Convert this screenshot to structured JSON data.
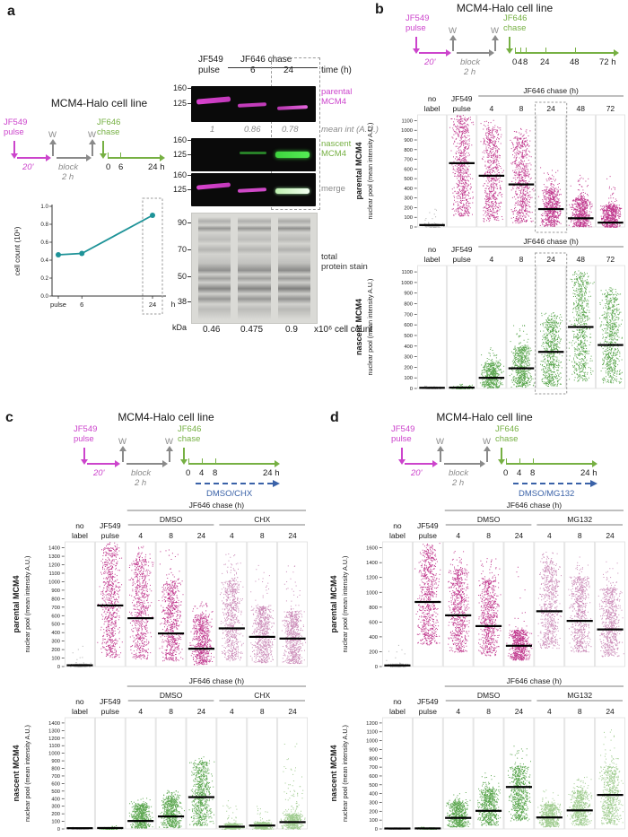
{
  "panels": {
    "a": {
      "letter": "a",
      "title": "MCM4-Halo cell line",
      "schematic": {
        "jf549": [
          "JF549",
          "pulse"
        ],
        "w1": "W",
        "w2": "W",
        "jf646": [
          "JF646",
          "chase"
        ],
        "pulse_dur": "20'",
        "block": [
          "block",
          "2 h"
        ],
        "ticks": [
          "0",
          "6",
          "24 h"
        ]
      },
      "blots": {
        "group_header": "JF646 chase",
        "col1": [
          "JF549",
          "pulse"
        ],
        "col2": "6",
        "col3": "24",
        "time_label": "time (h)",
        "marker_160": "160",
        "marker_125": "125",
        "row1_label": [
          "parental",
          "MCM4"
        ],
        "mean_values": [
          "1",
          "0.86",
          "0.78"
        ],
        "mean_label": "mean int (A.U.)",
        "row2_label": [
          "nascent",
          "MCM4"
        ],
        "row3_label": "merge",
        "stain_markers": [
          "90",
          "70",
          "50",
          "38"
        ],
        "kda": "kDa",
        "stain_label": [
          "total",
          "protein stain"
        ],
        "counts": [
          "0.46",
          "0.475",
          "0.9"
        ],
        "counts_suffix": "x10⁶ cell count"
      }
    },
    "b": {
      "letter": "b",
      "title": "MCM4-Halo cell line",
      "schematic": {
        "jf549": [
          "JF549",
          "pulse"
        ],
        "w1": "W",
        "w2": "W",
        "jf646": [
          "JF646",
          "chase"
        ],
        "pulse_dur": "20'",
        "block": [
          "block",
          "2 h"
        ],
        "ticks": [
          "0",
          "4",
          "8",
          "24",
          "48",
          "72 h"
        ]
      }
    },
    "c": {
      "letter": "c",
      "title": "MCM4-Halo cell line",
      "schematic": {
        "jf549": [
          "JF549",
          "pulse"
        ],
        "w1": "W",
        "w2": "W",
        "jf646": [
          "JF646",
          "chase"
        ],
        "pulse_dur": "20'",
        "block": [
          "block",
          "2 h"
        ],
        "ticks": [
          "0",
          "4",
          "8",
          "24 h"
        ],
        "drug": "DMSO/CHX"
      }
    },
    "d": {
      "letter": "d",
      "title": "MCM4-Halo cell line",
      "schematic": {
        "jf549": [
          "JF549",
          "pulse"
        ],
        "w1": "W",
        "w2": "W",
        "jf646": [
          "JF646",
          "chase"
        ],
        "pulse_dur": "20'",
        "block": [
          "block",
          "2 h"
        ],
        "ticks": [
          "0",
          "4",
          "8",
          "24 h"
        ],
        "drug": "DMSO/MG132"
      }
    }
  },
  "chart_data": [
    {
      "id": "a_cell_count",
      "type": "line",
      "title": "",
      "ylabel": "cell count (10⁶)",
      "categories": [
        "pulse",
        "6",
        "24"
      ],
      "x_hours": [
        0,
        6,
        24
      ],
      "values": [
        0.46,
        0.475,
        0.9
      ],
      "ylim": [
        0,
        1.0
      ],
      "ystep": 0.2,
      "x_suffix": "h",
      "color": "#1e9398",
      "dashed_last": true
    },
    {
      "id": "b_parental",
      "type": "scatter",
      "ylabel_bold": "parental MCM4",
      "ylabel_sub": "nuclear pool (mean intensity A.U.)",
      "ylim": 1100,
      "ystep": 100,
      "ymax_display": 1160,
      "top_header": {
        "label": "JF646 chase (h)",
        "from": 2,
        "to": 6
      },
      "dashed_col": 4,
      "columns": [
        {
          "label": "no label",
          "lines": [
            "no",
            "label"
          ],
          "color": "#a3a3a3",
          "lo": 0,
          "hi": 35,
          "median": 20,
          "max": 195,
          "n": 240,
          "tail": 0.06
        },
        {
          "label": "JF549 pulse",
          "lines": [
            "JF549",
            "pulse"
          ],
          "color": "#b82080",
          "lo": 110,
          "hi": 1115,
          "median": 660,
          "max": 1160,
          "n": 700,
          "tail": 0.04
        },
        {
          "label": "4",
          "color": "#b82080",
          "lo": 60,
          "hi": 1010,
          "median": 530,
          "max": 1120,
          "n": 660,
          "tail": 0.05
        },
        {
          "label": "8",
          "color": "#b82080",
          "lo": 45,
          "hi": 920,
          "median": 440,
          "max": 1030,
          "n": 660,
          "tail": 0.05
        },
        {
          "label": "24",
          "color": "#b82080",
          "lo": 10,
          "hi": 385,
          "median": 185,
          "max": 620,
          "n": 620,
          "tail": 0.07
        },
        {
          "label": "48",
          "color": "#b82080",
          "lo": 5,
          "hi": 300,
          "median": 90,
          "max": 540,
          "n": 600,
          "tail": 0.06
        },
        {
          "label": "72",
          "color": "#b82080",
          "lo": 0,
          "hi": 230,
          "median": 45,
          "max": 560,
          "n": 600,
          "tail": 0.05
        }
      ]
    },
    {
      "id": "b_nascent",
      "type": "scatter",
      "ylabel_bold": "nascent MCM4",
      "ylabel_sub": "nuclear pool (mean intensity A.U.)",
      "ylim": 1100,
      "ystep": 100,
      "ymax_display": 1160,
      "top_header": {
        "label": "JF646 chase (h)",
        "from": 2,
        "to": 6
      },
      "dashed_col": 4,
      "columns": [
        {
          "label": "no label",
          "lines": [
            "no",
            "label"
          ],
          "color": "#a3a3a3",
          "lo": 0,
          "hi": 18,
          "median": 6,
          "max": 28,
          "n": 210,
          "tail": 0.02
        },
        {
          "label": "JF549 pulse",
          "lines": [
            "JF549",
            "pulse"
          ],
          "color": "#449a37",
          "lo": 0,
          "hi": 20,
          "median": 8,
          "max": 45,
          "n": 260,
          "tail": 0.03
        },
        {
          "label": "4",
          "color": "#449a37",
          "lo": 8,
          "hi": 245,
          "median": 100,
          "max": 390,
          "n": 560,
          "tail": 0.05
        },
        {
          "label": "8",
          "color": "#449a37",
          "lo": 15,
          "hi": 395,
          "median": 190,
          "max": 600,
          "n": 620,
          "tail": 0.05
        },
        {
          "label": "24",
          "color": "#449a37",
          "lo": 25,
          "hi": 645,
          "median": 345,
          "max": 720,
          "n": 660,
          "tail": 0.05
        },
        {
          "label": "48",
          "color": "#449a37",
          "lo": 70,
          "hi": 1065,
          "median": 580,
          "max": 1120,
          "n": 700,
          "tail": 0.04
        },
        {
          "label": "72",
          "color": "#449a37",
          "lo": 55,
          "hi": 890,
          "median": 410,
          "max": 960,
          "n": 660,
          "tail": 0.05
        }
      ]
    },
    {
      "id": "c_parental",
      "type": "scatter",
      "ylabel_bold": "parental MCM4",
      "ylabel_sub": "nuclear pool (mean intensity A.U.)",
      "ylim": 1400,
      "ystep": 100,
      "ymax_display": 1470,
      "top_header": {
        "label": "JF646 chase (h)",
        "from": 2,
        "to": 7
      },
      "groups": [
        {
          "label": "DMSO",
          "from": 2,
          "to": 4
        },
        {
          "label": "CHX",
          "from": 5,
          "to": 7
        }
      ],
      "dashed_col": null,
      "columns": [
        {
          "label": "no label",
          "lines": [
            "no",
            "label"
          ],
          "color": "#a3a3a3",
          "lo": 0,
          "hi": 35,
          "median": 15,
          "max": 260,
          "n": 240,
          "tail": 0.05
        },
        {
          "label": "JF549 pulse",
          "lines": [
            "JF549",
            "pulse"
          ],
          "color": "#b82080",
          "lo": 110,
          "hi": 1400,
          "median": 720,
          "max": 1470,
          "n": 700,
          "tail": 0.04
        },
        {
          "label": "4",
          "color": "#b82080",
          "lo": 90,
          "hi": 1270,
          "median": 570,
          "max": 1430,
          "n": 660,
          "tail": 0.04
        },
        {
          "label": "8",
          "color": "#b82080",
          "lo": 70,
          "hi": 1010,
          "median": 390,
          "max": 1380,
          "n": 660,
          "tail": 0.04
        },
        {
          "label": "24",
          "color": "#b82080",
          "lo": 25,
          "hi": 610,
          "median": 210,
          "max": 780,
          "n": 620,
          "tail": 0.05
        },
        {
          "label": "4",
          "color": "#c47cae",
          "lo": 70,
          "hi": 1010,
          "median": 450,
          "max": 1340,
          "n": 660,
          "tail": 0.06
        },
        {
          "label": "8",
          "color": "#c47cae",
          "lo": 50,
          "hi": 710,
          "median": 350,
          "max": 1240,
          "n": 660,
          "tail": 0.05
        },
        {
          "label": "24",
          "color": "#c47cae",
          "lo": 40,
          "hi": 660,
          "median": 330,
          "max": 1330,
          "n": 660,
          "tail": 0.05
        }
      ]
    },
    {
      "id": "c_nascent",
      "type": "scatter",
      "ylabel_bold": "nascent MCM4",
      "ylabel_sub": "nuclear pool (mean intensity A.U.)",
      "ylim": 1400,
      "ystep": 100,
      "ymax_display": 1470,
      "top_header": {
        "label": "JF646 chase (h)",
        "from": 2,
        "to": 7
      },
      "groups": [
        {
          "label": "DMSO",
          "from": 2,
          "to": 4
        },
        {
          "label": "CHX",
          "from": 5,
          "to": 7
        }
      ],
      "dashed_col": null,
      "columns": [
        {
          "label": "no label",
          "lines": [
            "no",
            "label"
          ],
          "color": "#a3a3a3",
          "lo": 0,
          "hi": 20,
          "median": 10,
          "max": 32,
          "n": 210,
          "tail": 0.02
        },
        {
          "label": "JF549 pulse",
          "lines": [
            "JF549",
            "pulse"
          ],
          "color": "#449a37",
          "lo": 0,
          "hi": 25,
          "median": 12,
          "max": 48,
          "n": 260,
          "tail": 0.03
        },
        {
          "label": "4",
          "color": "#449a37",
          "lo": 15,
          "hi": 330,
          "median": 105,
          "max": 420,
          "n": 600,
          "tail": 0.04
        },
        {
          "label": "8",
          "color": "#449a37",
          "lo": 20,
          "hi": 440,
          "median": 165,
          "max": 520,
          "n": 620,
          "tail": 0.04
        },
        {
          "label": "24",
          "color": "#449a37",
          "lo": 45,
          "hi": 880,
          "median": 420,
          "max": 960,
          "n": 700,
          "tail": 0.04
        },
        {
          "label": "4",
          "color": "#93c581",
          "lo": 0,
          "hi": 75,
          "median": 30,
          "max": 390,
          "n": 450,
          "tail": 0.06
        },
        {
          "label": "8",
          "color": "#93c581",
          "lo": 0,
          "hi": 95,
          "median": 45,
          "max": 310,
          "n": 450,
          "tail": 0.06
        },
        {
          "label": "24",
          "color": "#93c581",
          "lo": 0,
          "hi": 195,
          "median": 90,
          "max": 1150,
          "n": 520,
          "tail": 0.16
        }
      ]
    },
    {
      "id": "d_parental",
      "type": "scatter",
      "ylabel_bold": "parental MCM4",
      "ylabel_sub": "nuclear pool (mean intensity A.U.)",
      "ylim": 1600,
      "ystep": 200,
      "ymax_display": 1680,
      "top_header": {
        "label": "JF646 chase (h)",
        "from": 2,
        "to": 7
      },
      "groups": [
        {
          "label": "DMSO",
          "from": 2,
          "to": 4
        },
        {
          "label": "MG132",
          "from": 5,
          "to": 7
        }
      ],
      "dashed_col": null,
      "columns": [
        {
          "label": "no label",
          "lines": [
            "no",
            "label"
          ],
          "color": "#a3a3a3",
          "lo": 0,
          "hi": 40,
          "median": 15,
          "max": 300,
          "n": 240,
          "tail": 0.04
        },
        {
          "label": "JF549 pulse",
          "lines": [
            "JF549",
            "pulse"
          ],
          "color": "#b82080",
          "lo": 290,
          "hi": 1560,
          "median": 870,
          "max": 1670,
          "n": 700,
          "tail": 0.04
        },
        {
          "label": "4",
          "color": "#b82080",
          "lo": 200,
          "hi": 1310,
          "median": 690,
          "max": 1560,
          "n": 660,
          "tail": 0.04
        },
        {
          "label": "8",
          "color": "#b82080",
          "lo": 150,
          "hi": 1160,
          "median": 545,
          "max": 1470,
          "n": 660,
          "tail": 0.04
        },
        {
          "label": "24",
          "color": "#b82080",
          "lo": 90,
          "hi": 500,
          "median": 280,
          "max": 1460,
          "n": 620,
          "tail": 0.05
        },
        {
          "label": "4",
          "color": "#c47cae",
          "lo": 250,
          "hi": 1410,
          "median": 745,
          "max": 1560,
          "n": 660,
          "tail": 0.04
        },
        {
          "label": "8",
          "color": "#c47cae",
          "lo": 200,
          "hi": 1210,
          "median": 615,
          "max": 1500,
          "n": 660,
          "tail": 0.04
        },
        {
          "label": "24",
          "color": "#c47cae",
          "lo": 140,
          "hi": 1060,
          "median": 500,
          "max": 1460,
          "n": 660,
          "tail": 0.04
        }
      ]
    },
    {
      "id": "d_nascent",
      "type": "scatter",
      "ylabel_bold": "nascent MCM4",
      "ylabel_sub": "nuclear pool (mean intensity A.U.)",
      "ylim": 1200,
      "ystep": 100,
      "ymax_display": 1260,
      "top_header": {
        "label": "JF646 chase (h)",
        "from": 2,
        "to": 7
      },
      "groups": [
        {
          "label": "DMSO",
          "from": 2,
          "to": 4
        },
        {
          "label": "MG132",
          "from": 5,
          "to": 7
        }
      ],
      "dashed_col": null,
      "columns": [
        {
          "label": "no label",
          "lines": [
            "no",
            "label"
          ],
          "color": "#a3a3a3",
          "lo": 0,
          "hi": 15,
          "median": 5,
          "max": 25,
          "n": 210,
          "tail": 0.02
        },
        {
          "label": "JF549 pulse",
          "lines": [
            "JF549",
            "pulse"
          ],
          "color": "#449a37",
          "lo": 0,
          "hi": 18,
          "median": 6,
          "max": 30,
          "n": 260,
          "tail": 0.02
        },
        {
          "label": "4",
          "color": "#449a37",
          "lo": 25,
          "hi": 305,
          "median": 125,
          "max": 430,
          "n": 600,
          "tail": 0.05
        },
        {
          "label": "8",
          "color": "#449a37",
          "lo": 45,
          "hi": 455,
          "median": 205,
          "max": 660,
          "n": 620,
          "tail": 0.05
        },
        {
          "label": "24",
          "color": "#449a37",
          "lo": 95,
          "hi": 710,
          "median": 475,
          "max": 960,
          "n": 700,
          "tail": 0.05
        },
        {
          "label": "4",
          "color": "#93c581",
          "lo": 25,
          "hi": 285,
          "median": 130,
          "max": 460,
          "n": 600,
          "tail": 0.05
        },
        {
          "label": "8",
          "color": "#93c581",
          "lo": 45,
          "hi": 435,
          "median": 210,
          "max": 610,
          "n": 620,
          "tail": 0.05
        },
        {
          "label": "24",
          "color": "#93c581",
          "lo": 55,
          "hi": 710,
          "median": 385,
          "max": 1160,
          "n": 660,
          "tail": 0.06
        }
      ]
    }
  ]
}
